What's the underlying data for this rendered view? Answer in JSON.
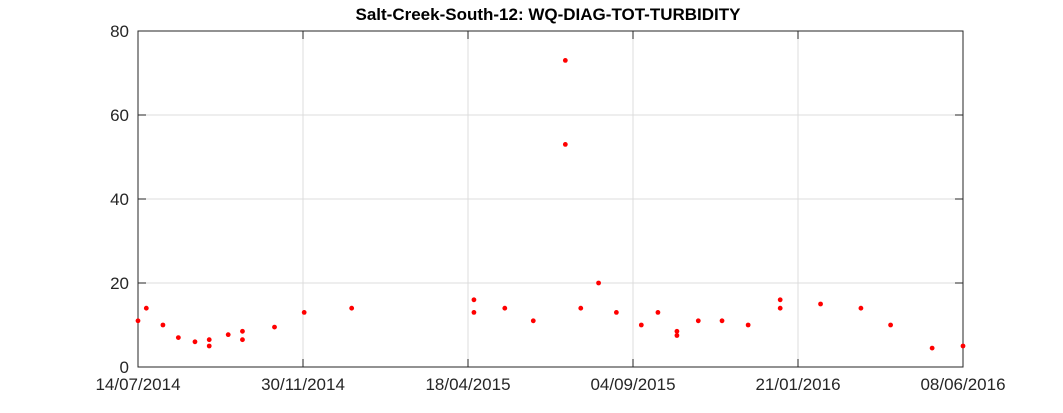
{
  "chart_data": {
    "type": "scatter",
    "title": "Salt-Creek-South-12: WQ-DIAG-TOT-TURBIDITY",
    "xlabel": "",
    "ylabel": "",
    "xlim": [
      "2014-07-14",
      "2016-06-08"
    ],
    "ylim": [
      0,
      80
    ],
    "x_ticks": [
      "14/07/2014",
      "30/11/2014",
      "18/04/2015",
      "04/09/2015",
      "21/01/2016",
      "08/06/2016"
    ],
    "y_ticks": [
      0,
      20,
      40,
      60,
      80
    ],
    "grid": true,
    "marker_color": "#ff0000",
    "series": [
      {
        "x": [
          "2014-07-14",
          "2014-07-21",
          "2014-08-04",
          "2014-08-17",
          "2014-08-31",
          "2014-09-12",
          "2014-09-12",
          "2014-09-28",
          "2014-10-10",
          "2014-10-10",
          "2014-11-06",
          "2014-12-01",
          "2015-01-10",
          "2015-04-23",
          "2015-04-23",
          "2015-05-19",
          "2015-06-12",
          "2015-07-09",
          "2015-07-09",
          "2015-07-22",
          "2015-08-06",
          "2015-08-21",
          "2015-09-11",
          "2015-09-25",
          "2015-10-11",
          "2015-10-11",
          "2015-10-29",
          "2015-11-18",
          "2015-12-10",
          "2016-01-06",
          "2016-01-06",
          "2016-02-09",
          "2016-03-14",
          "2016-04-08",
          "2016-05-13",
          "2016-06-08"
        ],
        "y": [
          11,
          14,
          10,
          7,
          6,
          6.5,
          5,
          7.7,
          6.5,
          8.5,
          9.5,
          13,
          14,
          16,
          13,
          14,
          11,
          73,
          53,
          14,
          20,
          13,
          10,
          13,
          8.5,
          7.5,
          11,
          11,
          10,
          16,
          14,
          15,
          14,
          10,
          4.5,
          5
        ]
      }
    ]
  }
}
